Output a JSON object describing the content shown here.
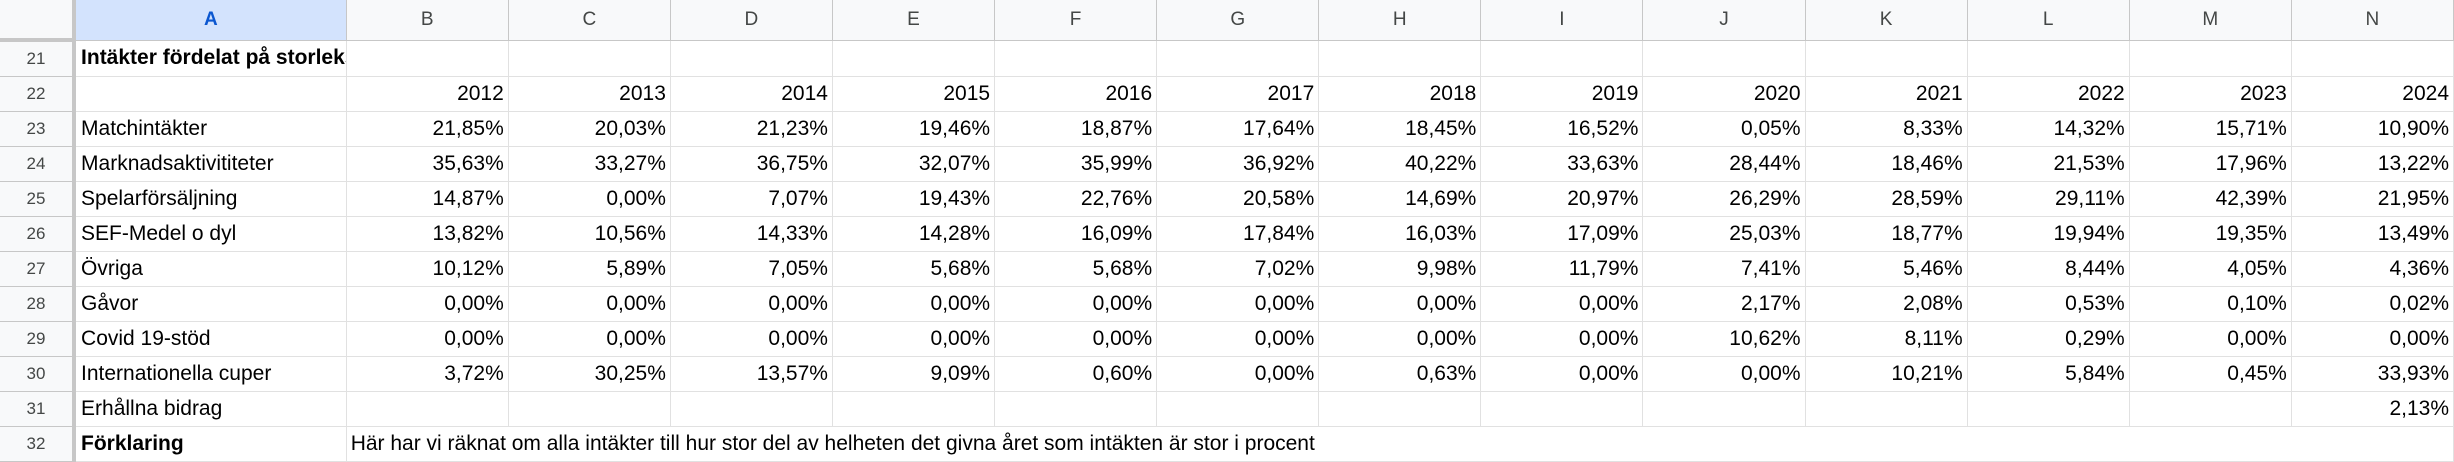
{
  "columns": [
    "A",
    "B",
    "C",
    "D",
    "E",
    "F",
    "G",
    "H",
    "I",
    "J",
    "K",
    "L",
    "M",
    "N"
  ],
  "selected_column": "A",
  "rows": [
    {
      "num": "21",
      "label": "Intäkter fördelat på storleksordning i procent",
      "bold": true,
      "values": [
        "",
        "",
        "",
        "",
        "",
        "",
        "",
        "",
        "",
        "",
        "",
        "",
        ""
      ]
    },
    {
      "num": "22",
      "label": "",
      "bold": false,
      "values": [
        "2012",
        "2013",
        "2014",
        "2015",
        "2016",
        "2017",
        "2018",
        "2019",
        "2020",
        "2021",
        "2022",
        "2023",
        "2024"
      ]
    },
    {
      "num": "23",
      "label": "Matchintäkter",
      "bold": false,
      "values": [
        "21,85%",
        "20,03%",
        "21,23%",
        "19,46%",
        "18,87%",
        "17,64%",
        "18,45%",
        "16,52%",
        "0,05%",
        "8,33%",
        "14,32%",
        "15,71%",
        "10,90%"
      ]
    },
    {
      "num": "24",
      "label": "Marknadsaktivititeter",
      "bold": false,
      "values": [
        "35,63%",
        "33,27%",
        "36,75%",
        "32,07%",
        "35,99%",
        "36,92%",
        "40,22%",
        "33,63%",
        "28,44%",
        "18,46%",
        "21,53%",
        "17,96%",
        "13,22%"
      ]
    },
    {
      "num": "25",
      "label": "Spelarförsäljning",
      "bold": false,
      "values": [
        "14,87%",
        "0,00%",
        "7,07%",
        "19,43%",
        "22,76%",
        "20,58%",
        "14,69%",
        "20,97%",
        "26,29%",
        "28,59%",
        "29,11%",
        "42,39%",
        "21,95%"
      ]
    },
    {
      "num": "26",
      "label": "SEF-Medel o dyl",
      "bold": false,
      "values": [
        "13,82%",
        "10,56%",
        "14,33%",
        "14,28%",
        "16,09%",
        "17,84%",
        "16,03%",
        "17,09%",
        "25,03%",
        "18,77%",
        "19,94%",
        "19,35%",
        "13,49%"
      ]
    },
    {
      "num": "27",
      "label": "Övriga",
      "bold": false,
      "values": [
        "10,12%",
        "5,89%",
        "7,05%",
        "5,68%",
        "5,68%",
        "7,02%",
        "9,98%",
        "11,79%",
        "7,41%",
        "5,46%",
        "8,44%",
        "4,05%",
        "4,36%"
      ]
    },
    {
      "num": "28",
      "label": "Gåvor",
      "bold": false,
      "values": [
        "0,00%",
        "0,00%",
        "0,00%",
        "0,00%",
        "0,00%",
        "0,00%",
        "0,00%",
        "0,00%",
        "2,17%",
        "2,08%",
        "0,53%",
        "0,10%",
        "0,02%"
      ]
    },
    {
      "num": "29",
      "label": "Covid 19-stöd",
      "bold": false,
      "values": [
        "0,00%",
        "0,00%",
        "0,00%",
        "0,00%",
        "0,00%",
        "0,00%",
        "0,00%",
        "0,00%",
        "10,62%",
        "8,11%",
        "0,29%",
        "0,00%",
        "0,00%"
      ]
    },
    {
      "num": "30",
      "label": "Internationella cuper",
      "bold": false,
      "values": [
        "3,72%",
        "30,25%",
        "13,57%",
        "9,09%",
        "0,60%",
        "0,00%",
        "0,63%",
        "0,00%",
        "0,00%",
        "10,21%",
        "5,84%",
        "0,45%",
        "33,93%"
      ]
    },
    {
      "num": "31",
      "label": "Erhållna bidrag",
      "bold": false,
      "values": [
        "",
        "",
        "",
        "",
        "",
        "",
        "",
        "",
        "",
        "",
        "",
        "",
        "2,13%"
      ]
    }
  ],
  "explanation_row": {
    "num": "32",
    "label": "Förklaring",
    "text": "Här har vi räknat om alla intäkter till hur stor del av helheten det givna året som intäkten är stor i procent"
  }
}
